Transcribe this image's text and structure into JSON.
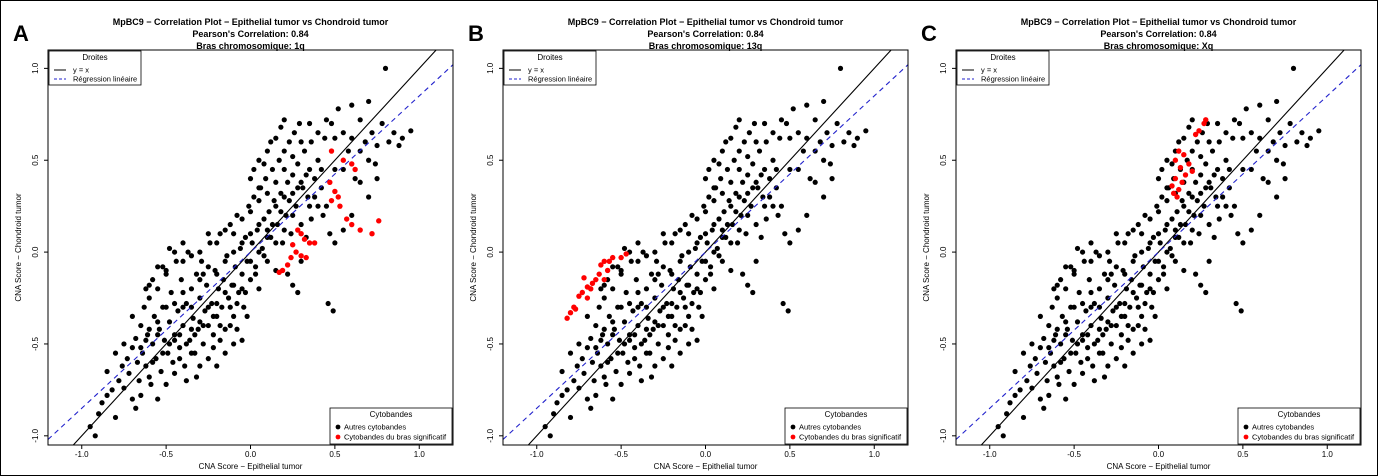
{
  "colors": {
    "default_points": "#000000",
    "highlight_points": "#ff0000",
    "identity_line": "#000000",
    "regression_line": "#2222cc"
  },
  "chart_data": [
    {
      "panel_label": "A",
      "type": "scatter",
      "title": "MpBC9 − Correlation Plot − Epithelial tumor vs Chondroid tumor",
      "subtitle": "Pearson's Correlation: 0.84",
      "subtitle2": "Bras chromosomique: 1q",
      "xlabel": "CNA Score − Epithelial tumor",
      "ylabel": "CNA Score − Chondroid tumor",
      "xlim": [
        -1.2,
        1.2
      ],
      "ylim": [
        -1.05,
        1.1
      ],
      "xticks": [
        "-1.0",
        "-0.5",
        "0.0",
        "0.5",
        "1.0"
      ],
      "yticks": [
        "-1.0",
        "-0.5",
        "0.0",
        "0.5",
        "1.0"
      ],
      "identity_line": {
        "slope": 1,
        "intercept": 0
      },
      "regression_line": {
        "slope": 0.85,
        "intercept": 0.0
      },
      "legend_lines": {
        "title": "Droites",
        "position": "top-left",
        "items": [
          "y = x",
          "Régression linéaire"
        ]
      },
      "legend_points": {
        "title": "Cytobandes",
        "position": "bottom-right",
        "items": [
          "Autres cytobandes",
          "Cytobandes du bras significatif"
        ]
      },
      "highlight": [
        [
          0.48,
          0.55
        ],
        [
          0.55,
          0.5
        ],
        [
          0.6,
          0.48
        ],
        [
          0.62,
          0.45
        ],
        [
          0.47,
          0.38
        ],
        [
          0.5,
          0.33
        ],
        [
          0.52,
          0.3
        ],
        [
          0.48,
          0.28
        ],
        [
          0.53,
          0.25
        ],
        [
          0.57,
          0.18
        ],
        [
          0.6,
          0.15
        ],
        [
          0.65,
          0.12
        ],
        [
          0.72,
          0.1
        ],
        [
          0.76,
          0.17
        ],
        [
          0.28,
          0.12
        ],
        [
          0.3,
          0.1
        ],
        [
          0.32,
          0.07
        ],
        [
          0.35,
          0.05
        ],
        [
          0.38,
          0.05
        ],
        [
          0.25,
          0.04
        ],
        [
          0.27,
          0.0
        ],
        [
          0.24,
          -0.03
        ],
        [
          0.3,
          -0.02
        ],
        [
          0.33,
          -0.03
        ],
        [
          0.22,
          -0.07
        ],
        [
          0.19,
          -0.1
        ],
        [
          0.17,
          -0.11
        ]
      ]
    },
    {
      "panel_label": "B",
      "type": "scatter",
      "title": "MpBC9 − Correlation Plot − Epithelial tumor vs Chondroid tumor",
      "subtitle": "Pearson's Correlation: 0.84",
      "subtitle2": "Bras chromosomique: 13q",
      "xlabel": "CNA Score − Epithelial tumor",
      "ylabel": "CNA Score − Chondroid tumor",
      "xlim": [
        -1.2,
        1.2
      ],
      "ylim": [
        -1.05,
        1.1
      ],
      "xticks": [
        "-1.0",
        "-0.5",
        "0.0",
        "0.5",
        "1.0"
      ],
      "yticks": [
        "-1.0",
        "-0.5",
        "0.0",
        "0.5",
        "1.0"
      ],
      "identity_line": {
        "slope": 1,
        "intercept": 0
      },
      "regression_line": {
        "slope": 0.85,
        "intercept": 0.0
      },
      "legend_lines": {
        "title": "Droites",
        "position": "top-left",
        "items": [
          "y = x",
          "Régression linéaire"
        ]
      },
      "legend_points": {
        "title": "Cytobandes",
        "position": "bottom-right",
        "items": [
          "Autres cytobandes",
          "Cytobandes du bras significatif"
        ]
      },
      "highlight": [
        [
          -0.47,
          -0.01
        ],
        [
          -0.5,
          -0.03
        ],
        [
          -0.55,
          -0.03
        ],
        [
          -0.57,
          -0.05
        ],
        [
          -0.6,
          -0.05
        ],
        [
          -0.62,
          -0.07
        ],
        [
          -0.58,
          -0.1
        ],
        [
          -0.63,
          -0.12
        ],
        [
          -0.65,
          -0.15
        ],
        [
          -0.6,
          -0.15
        ],
        [
          -0.67,
          -0.17
        ],
        [
          -0.7,
          -0.19
        ],
        [
          -0.72,
          -0.14
        ],
        [
          -0.68,
          -0.2
        ],
        [
          -0.73,
          -0.22
        ],
        [
          -0.75,
          -0.24
        ],
        [
          -0.7,
          -0.25
        ],
        [
          -0.78,
          -0.3
        ],
        [
          -0.8,
          -0.33
        ],
        [
          -0.82,
          -0.36
        ],
        [
          -0.77,
          -0.31
        ]
      ]
    },
    {
      "panel_label": "C",
      "type": "scatter",
      "title": "MpBC9 − Correlation Plot − Epithelial tumor vs Chondroid tumor",
      "subtitle": "Pearson's Correlation: 0.84",
      "subtitle2": "Bras chromosomique: Xq",
      "xlabel": "CNA Score − Epithelial tumor",
      "ylabel": "CNA Score − Chondroid tumor",
      "xlim": [
        -1.2,
        1.2
      ],
      "ylim": [
        -1.05,
        1.1
      ],
      "xticks": [
        "-1.0",
        "-0.5",
        "0.0",
        "0.5",
        "1.0"
      ],
      "yticks": [
        "-1.0",
        "-0.5",
        "0.0",
        "0.5",
        "1.0"
      ],
      "identity_line": {
        "slope": 1,
        "intercept": 0
      },
      "regression_line": {
        "slope": 0.85,
        "intercept": 0.0
      },
      "legend_lines": {
        "title": "Droites",
        "position": "top-left",
        "items": [
          "y = x",
          "Régression linéaire"
        ]
      },
      "legend_points": {
        "title": "Cytobandes",
        "position": "bottom-right",
        "items": [
          "Autres cytobandes",
          "Cytobandes du bras significatif"
        ]
      },
      "highlight": [
        [
          0.28,
          0.72
        ],
        [
          0.27,
          0.7
        ],
        [
          0.24,
          0.66
        ],
        [
          0.22,
          0.64
        ],
        [
          0.12,
          0.55
        ],
        [
          0.15,
          0.53
        ],
        [
          0.1,
          0.5
        ],
        [
          0.18,
          0.48
        ],
        [
          0.13,
          0.46
        ],
        [
          0.2,
          0.44
        ],
        [
          0.16,
          0.42
        ],
        [
          0.1,
          0.4
        ],
        [
          0.14,
          0.38
        ],
        [
          0.08,
          0.36
        ],
        [
          0.12,
          0.34
        ],
        [
          0.09,
          0.32
        ],
        [
          0.11,
          0.3
        ]
      ]
    }
  ],
  "background_points": [
    [
      -0.95,
      -0.95
    ],
    [
      -0.92,
      -1.0
    ],
    [
      -0.9,
      -0.88
    ],
    [
      -0.88,
      -0.82
    ],
    [
      -0.85,
      -0.78
    ],
    [
      -0.82,
      -0.75
    ],
    [
      -0.8,
      -0.9
    ],
    [
      -0.78,
      -0.7
    ],
    [
      -0.76,
      -0.62
    ],
    [
      -0.75,
      -0.74
    ],
    [
      -0.73,
      -0.58
    ],
    [
      -0.72,
      -0.66
    ],
    [
      -0.7,
      -0.52
    ],
    [
      -0.7,
      -0.8
    ],
    [
      -0.68,
      -0.47
    ],
    [
      -0.67,
      -0.6
    ],
    [
      -0.66,
      -0.7
    ],
    [
      -0.65,
      -0.4
    ],
    [
      -0.64,
      -0.55
    ],
    [
      -0.63,
      -0.3
    ],
    [
      -0.62,
      -0.62
    ],
    [
      -0.61,
      -0.45
    ],
    [
      -0.6,
      -0.25
    ],
    [
      -0.59,
      -0.72
    ],
    [
      -0.58,
      -0.5
    ],
    [
      -0.57,
      -0.35
    ],
    [
      -0.56,
      -0.58
    ],
    [
      -0.55,
      -0.2
    ],
    [
      -0.54,
      -0.42
    ],
    [
      -0.53,
      -0.65
    ],
    [
      -0.52,
      -0.3
    ],
    [
      -0.51,
      -0.48
    ],
    [
      -0.5,
      -0.1
    ],
    [
      -0.49,
      -0.55
    ],
    [
      -0.48,
      -0.38
    ],
    [
      -0.47,
      -0.22
    ],
    [
      -0.46,
      -0.6
    ],
    [
      -0.45,
      -0.45
    ],
    [
      -0.44,
      -0.05
    ],
    [
      -0.43,
      -0.32
    ],
    [
      -0.42,
      -0.52
    ],
    [
      -0.41,
      -0.15
    ],
    [
      -0.4,
      -0.4
    ],
    [
      -0.39,
      -0.62
    ],
    [
      -0.38,
      -0.28
    ],
    [
      -0.37,
      0.0
    ],
    [
      -0.36,
      -0.48
    ],
    [
      -0.35,
      -0.2
    ],
    [
      -0.34,
      -0.36
    ],
    [
      -0.33,
      -0.55
    ],
    [
      -0.32,
      -0.12
    ],
    [
      -0.31,
      -0.42
    ],
    [
      -0.3,
      -0.25
    ],
    [
      -0.29,
      -0.05
    ],
    [
      -0.28,
      -0.5
    ],
    [
      -0.27,
      -0.32
    ],
    [
      -0.26,
      -0.18
    ],
    [
      -0.25,
      -0.4
    ],
    [
      -0.24,
      0.05
    ],
    [
      -0.23,
      -0.28
    ],
    [
      -0.22,
      -0.45
    ],
    [
      -0.21,
      -0.1
    ],
    [
      -0.2,
      -0.35
    ],
    [
      -0.19,
      -0.2
    ],
    [
      -0.18,
      0.1
    ],
    [
      -0.17,
      -0.3
    ],
    [
      -0.16,
      -0.15
    ],
    [
      -0.15,
      -0.42
    ],
    [
      -0.14,
      -0.02
    ],
    [
      -0.13,
      -0.25
    ],
    [
      -0.12,
      0.15
    ],
    [
      -0.11,
      -0.18
    ],
    [
      -0.1,
      -0.35
    ],
    [
      -0.09,
      -0.08
    ],
    [
      -0.08,
      0.2
    ],
    [
      -0.07,
      -0.22
    ],
    [
      -0.06,
      0.02
    ],
    [
      -0.05,
      -0.12
    ],
    [
      -0.04,
      -0.3
    ],
    [
      -0.03,
      0.08
    ],
    [
      -0.02,
      -0.05
    ],
    [
      -0.01,
      0.25
    ],
    [
      0.0,
      -0.15
    ],
    [
      0.01,
      0.05
    ],
    [
      0.02,
      0.3
    ],
    [
      0.03,
      -0.08
    ],
    [
      0.04,
      0.12
    ],
    [
      0.05,
      -0.2
    ],
    [
      0.06,
      0.35
    ],
    [
      0.07,
      0.02
    ],
    [
      0.08,
      0.18
    ],
    [
      0.09,
      0.4
    ],
    [
      0.1,
      -0.05
    ],
    [
      0.11,
      0.22
    ],
    [
      0.12,
      0.08
    ],
    [
      0.13,
      0.45
    ],
    [
      0.14,
      0.28
    ],
    [
      0.15,
      -0.1
    ],
    [
      0.16,
      0.15
    ],
    [
      0.17,
      0.5
    ],
    [
      0.18,
      0.32
    ],
    [
      0.19,
      0.05
    ],
    [
      0.2,
      0.55
    ],
    [
      0.21,
      0.2
    ],
    [
      0.22,
      0.38
    ],
    [
      0.23,
      0.6
    ],
    [
      0.24,
      0.1
    ],
    [
      0.25,
      0.42
    ],
    [
      0.26,
      0.65
    ],
    [
      0.27,
      0.25
    ],
    [
      0.28,
      0.48
    ],
    [
      0.29,
      0.7
    ],
    [
      0.3,
      0.15
    ],
    [
      0.31,
      0.35
    ],
    [
      0.32,
      0.55
    ],
    [
      0.34,
      0.3
    ],
    [
      0.35,
      0.45
    ],
    [
      0.36,
      0.6
    ],
    [
      0.38,
      0.4
    ],
    [
      0.4,
      0.5
    ],
    [
      0.42,
      0.35
    ],
    [
      0.44,
      0.62
    ],
    [
      0.45,
      0.25
    ],
    [
      0.46,
      -0.28
    ],
    [
      0.48,
      0.7
    ],
    [
      0.49,
      -0.32
    ],
    [
      0.5,
      0.45
    ],
    [
      0.52,
      0.78
    ],
    [
      0.55,
      0.65
    ],
    [
      0.58,
      0.55
    ],
    [
      0.6,
      0.8
    ],
    [
      0.62,
      0.4
    ],
    [
      0.65,
      0.72
    ],
    [
      0.68,
      0.6
    ],
    [
      0.7,
      0.82
    ],
    [
      0.72,
      0.65
    ],
    [
      0.75,
      0.58
    ],
    [
      0.78,
      0.7
    ],
    [
      0.8,
      1.0
    ],
    [
      0.82,
      0.6
    ],
    [
      0.85,
      0.65
    ],
    [
      0.88,
      0.58
    ],
    [
      0.9,
      0.62
    ],
    [
      0.95,
      0.66
    ],
    [
      -0.85,
      -0.65
    ],
    [
      -0.8,
      -0.55
    ],
    [
      -0.75,
      -0.5
    ],
    [
      -0.7,
      -0.35
    ],
    [
      -0.68,
      -0.85
    ],
    [
      -0.65,
      -0.78
    ],
    [
      -0.62,
      -0.2
    ],
    [
      -0.6,
      -0.68
    ],
    [
      -0.58,
      -0.15
    ],
    [
      -0.55,
      -0.8
    ],
    [
      -0.52,
      -0.08
    ],
    [
      -0.5,
      -0.72
    ],
    [
      -0.48,
      0.02
    ],
    [
      -0.45,
      -0.66
    ],
    [
      -0.42,
      -0.58
    ],
    [
      -0.4,
      -0.05
    ],
    [
      -0.38,
      -0.7
    ],
    [
      -0.35,
      -0.55
    ],
    [
      -0.32,
      -0.68
    ],
    [
      -0.3,
      -0.62
    ],
    [
      -0.28,
      -0.12
    ],
    [
      -0.25,
      -0.58
    ],
    [
      -0.22,
      -0.52
    ],
    [
      -0.2,
      -0.62
    ],
    [
      -0.18,
      -0.48
    ],
    [
      -0.15,
      -0.55
    ],
    [
      -0.12,
      -0.4
    ],
    [
      -0.1,
      -0.5
    ],
    [
      -0.08,
      -0.42
    ],
    [
      -0.05,
      -0.48
    ],
    [
      -0.02,
      -0.35
    ],
    [
      0.0,
      0.4
    ],
    [
      0.02,
      0.45
    ],
    [
      0.05,
      0.5
    ],
    [
      0.08,
      0.48
    ],
    [
      0.1,
      0.55
    ],
    [
      0.12,
      0.6
    ],
    [
      0.15,
      0.62
    ],
    [
      0.18,
      0.68
    ],
    [
      0.2,
      0.72
    ],
    [
      0.22,
      -0.12
    ],
    [
      0.25,
      -0.18
    ],
    [
      0.28,
      -0.22
    ],
    [
      0.3,
      -0.05
    ],
    [
      0.33,
      0.08
    ],
    [
      0.36,
      0.18
    ],
    [
      0.4,
      0.25
    ],
    [
      0.43,
      0.2
    ],
    [
      0.47,
      0.1
    ],
    [
      0.5,
      0.05
    ],
    [
      0.55,
      0.12
    ],
    [
      0.6,
      0.2
    ],
    [
      0.65,
      0.38
    ],
    [
      0.7,
      0.3
    ],
    [
      0.74,
      0.48
    ],
    [
      -0.45,
      -0.28
    ],
    [
      -0.4,
      -0.22
    ],
    [
      -0.35,
      -0.3
    ],
    [
      -0.3,
      -0.15
    ],
    [
      -0.25,
      -0.08
    ],
    [
      -0.2,
      -0.12
    ],
    [
      -0.15,
      -0.05
    ],
    [
      -0.1,
      0.0
    ],
    [
      -0.05,
      0.05
    ],
    [
      0.0,
      0.1
    ],
    [
      0.05,
      0.15
    ],
    [
      0.1,
      0.12
    ],
    [
      0.15,
      0.25
    ],
    [
      0.2,
      0.3
    ],
    [
      0.25,
      0.2
    ],
    [
      -0.6,
      -0.42
    ],
    [
      -0.55,
      -0.38
    ],
    [
      -0.5,
      -0.3
    ],
    [
      -0.45,
      -0.48
    ],
    [
      -0.4,
      -0.3
    ],
    [
      -0.35,
      -0.42
    ],
    [
      -0.3,
      -0.38
    ],
    [
      -0.25,
      -0.3
    ],
    [
      -0.2,
      -0.28
    ],
    [
      -0.15,
      -0.22
    ],
    [
      -0.1,
      -0.18
    ],
    [
      -0.05,
      -0.2
    ],
    [
      0.0,
      -0.05
    ],
    [
      0.05,
      0.0
    ],
    [
      0.1,
      0.08
    ],
    [
      0.15,
      0.05
    ],
    [
      0.2,
      0.12
    ],
    [
      0.25,
      0.32
    ],
    [
      0.3,
      0.38
    ],
    [
      0.35,
      0.25
    ],
    [
      -0.65,
      -0.52
    ],
    [
      -0.62,
      -0.48
    ],
    [
      -0.58,
      -0.6
    ],
    [
      -0.55,
      -0.45
    ],
    [
      -0.52,
      -0.55
    ],
    [
      -0.48,
      -0.5
    ],
    [
      -0.42,
      -0.45
    ],
    [
      -0.38,
      -0.5
    ],
    [
      -0.33,
      -0.45
    ],
    [
      -0.28,
      -0.4
    ],
    [
      -0.22,
      -0.35
    ],
    [
      -0.18,
      -0.4
    ],
    [
      -0.12,
      -0.3
    ],
    [
      -0.08,
      -0.28
    ],
    [
      -0.03,
      -0.22
    ],
    [
      0.03,
      -0.12
    ],
    [
      0.08,
      -0.02
    ],
    [
      0.13,
      0.15
    ],
    [
      0.18,
      0.22
    ],
    [
      0.23,
      0.28
    ],
    [
      0.28,
      0.35
    ],
    [
      0.33,
      0.42
    ],
    [
      0.38,
      0.3
    ],
    [
      0.42,
      0.45
    ],
    [
      -0.2,
      0.05
    ],
    [
      -0.15,
      0.12
    ],
    [
      -0.1,
      0.1
    ],
    [
      -0.05,
      0.18
    ],
    [
      0.0,
      0.22
    ],
    [
      0.05,
      0.28
    ],
    [
      -0.3,
      0.0
    ],
    [
      -0.25,
      0.1
    ],
    [
      -0.35,
      -0.02
    ],
    [
      -0.4,
      0.05
    ],
    [
      -0.45,
      0.0
    ],
    [
      -0.5,
      -0.12
    ],
    [
      -0.55,
      -0.08
    ],
    [
      -0.6,
      -0.18
    ],
    [
      0.4,
      0.65
    ],
    [
      0.45,
      0.72
    ],
    [
      0.35,
      0.7
    ],
    [
      0.3,
      0.6
    ],
    [
      0.25,
      0.52
    ],
    [
      0.2,
      0.45
    ],
    [
      0.15,
      0.38
    ],
    [
      0.1,
      0.32
    ],
    [
      0.05,
      0.35
    ],
    [
      0.5,
      0.62
    ],
    [
      0.55,
      0.45
    ],
    [
      0.6,
      0.62
    ],
    [
      0.65,
      0.55
    ],
    [
      0.7,
      0.5
    ],
    [
      0.75,
      0.4
    ]
  ]
}
